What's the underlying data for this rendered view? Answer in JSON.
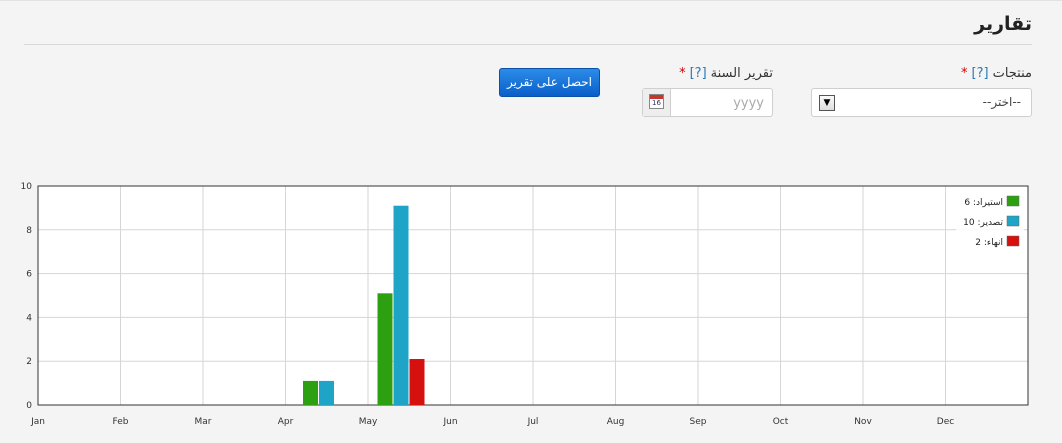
{
  "page": {
    "title": "تقارير"
  },
  "form": {
    "products": {
      "label": "منتجات",
      "help": "[?]",
      "required": "*",
      "selected": "--اختر--"
    },
    "year": {
      "label": "تقرير السنة",
      "help": "[?]",
      "required": "*",
      "placeholder": "yyyy",
      "calendar_day": "16"
    },
    "submit_label": "احصل على تقرير"
  },
  "chart_data": {
    "type": "bar",
    "categories": [
      "Jan",
      "Feb",
      "Mar",
      "Apr",
      "May",
      "Jun",
      "Jul",
      "Aug",
      "Sep",
      "Oct",
      "Nov",
      "Dec"
    ],
    "ylim": [
      0,
      10
    ],
    "yticks": [
      0,
      2,
      4,
      6,
      8,
      10
    ],
    "grid": true,
    "legend_position": "top-right",
    "series": [
      {
        "name": "استيراد",
        "total": 6,
        "legend_label": "استيراد: 6",
        "color": "#2ca011",
        "values": [
          0,
          0,
          0,
          1.1,
          5.1,
          0,
          0,
          0,
          0,
          0,
          0,
          0
        ]
      },
      {
        "name": "تصدير",
        "total": 10,
        "legend_label": "تصدير: 10",
        "color": "#1ea4c6",
        "values": [
          0,
          0,
          0,
          1.1,
          9.1,
          0,
          0,
          0,
          0,
          0,
          0,
          0
        ]
      },
      {
        "name": "انهاء",
        "total": 2,
        "legend_label": "انهاء: 2",
        "color": "#d6100f",
        "values": [
          0,
          0,
          0,
          0,
          2.1,
          0,
          0,
          0,
          0,
          0,
          0,
          0
        ]
      }
    ]
  }
}
